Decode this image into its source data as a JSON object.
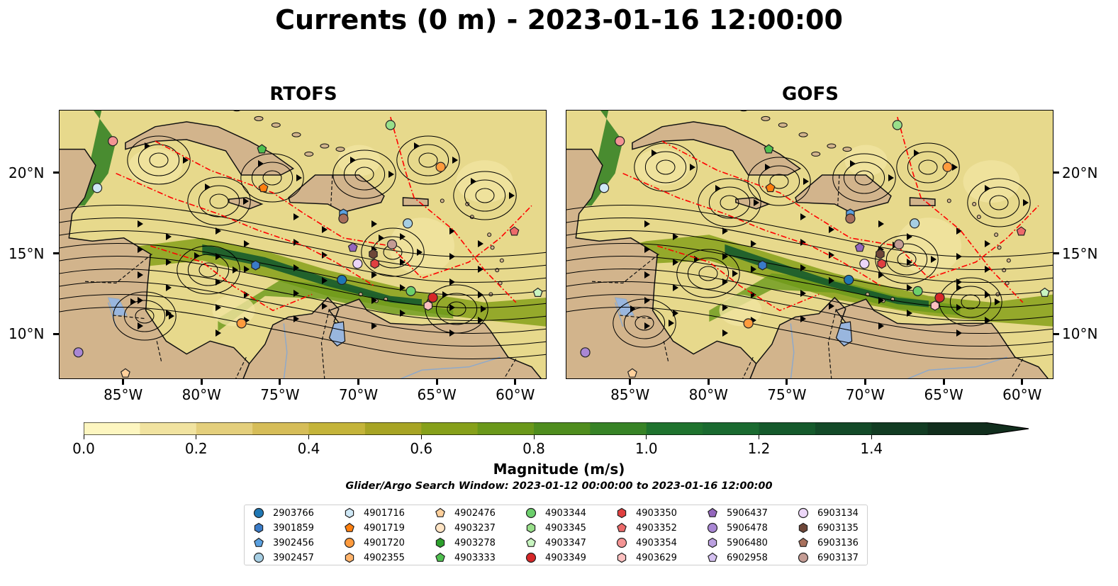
{
  "title": "Currents (0 m) - 2023-01-16 12:00:00",
  "panels": [
    {
      "title": "RTOFS"
    },
    {
      "title": "GOFS"
    }
  ],
  "axes": {
    "x_ticks": [
      "85°W",
      "80°W",
      "75°W",
      "70°W",
      "65°W",
      "60°W"
    ],
    "y_ticks": [
      "20°N",
      "15°N",
      "10°N"
    ]
  },
  "colorbar": {
    "label": "Magnitude (m/s)",
    "ticks": [
      "0.0",
      "0.2",
      "0.4",
      "0.6",
      "0.8",
      "1.0",
      "1.2",
      "1.4"
    ],
    "colors": [
      "#fdf6c0",
      "#f1e3a0",
      "#e4cf7c",
      "#d6bd58",
      "#c4b43a",
      "#a7a424",
      "#86a01a",
      "#6a981a",
      "#4f8d1e",
      "#378326",
      "#1f732e",
      "#1a6a30",
      "#155a2c",
      "#134a28",
      "#123c23",
      "#112e1d"
    ]
  },
  "search_window": "Glider/Argo Search Window: 2023-01-12 00:00:00 to 2023-01-16 12:00:00",
  "colors": {
    "land": "#d2b48c",
    "lake": "#99b6de",
    "eez": "#ff0000"
  },
  "legend": [
    {
      "id": "2903766",
      "color": "#1f77b4",
      "marker": "circle"
    },
    {
      "id": "3901859",
      "color": "#3a7bc8",
      "marker": "hexagon"
    },
    {
      "id": "3902456",
      "color": "#5aa0e0",
      "marker": "pentagon"
    },
    {
      "id": "3902457",
      "color": "#a6cee3",
      "marker": "circle"
    },
    {
      "id": "4901716",
      "color": "#cfe8f6",
      "marker": "hexagon"
    },
    {
      "id": "4901719",
      "color": "#ff7f0e",
      "marker": "pentagon"
    },
    {
      "id": "4901720",
      "color": "#ff9b3d",
      "marker": "circle"
    },
    {
      "id": "4902355",
      "color": "#ffb36b",
      "marker": "hexagon"
    },
    {
      "id": "4902476",
      "color": "#ffd09b",
      "marker": "pentagon"
    },
    {
      "id": "4903237",
      "color": "#ffe4c4",
      "marker": "circle"
    },
    {
      "id": "4903278",
      "color": "#2ca02c",
      "marker": "hexagon"
    },
    {
      "id": "4903333",
      "color": "#4fc04f",
      "marker": "pentagon"
    },
    {
      "id": "4903344",
      "color": "#6ccf6c",
      "marker": "circle"
    },
    {
      "id": "4903345",
      "color": "#98df8a",
      "marker": "hexagon"
    },
    {
      "id": "4903347",
      "color": "#c8f5c0",
      "marker": "pentagon"
    },
    {
      "id": "4903349",
      "color": "#d62728",
      "marker": "circle"
    },
    {
      "id": "4903350",
      "color": "#e04040",
      "marker": "hexagon"
    },
    {
      "id": "4903352",
      "color": "#ec6a6a",
      "marker": "pentagon"
    },
    {
      "id": "4903354",
      "color": "#f49494",
      "marker": "circle"
    },
    {
      "id": "4903629",
      "color": "#fcc0c0",
      "marker": "hexagon"
    },
    {
      "id": "5906437",
      "color": "#9467bd",
      "marker": "pentagon"
    },
    {
      "id": "5906478",
      "color": "#a987d4",
      "marker": "circle"
    },
    {
      "id": "5906480",
      "color": "#bba0e0",
      "marker": "hexagon"
    },
    {
      "id": "6902958",
      "color": "#d4c0f0",
      "marker": "pentagon"
    },
    {
      "id": "6903134",
      "color": "#ecd6f8",
      "marker": "circle"
    },
    {
      "id": "6903135",
      "color": "#6e4638",
      "marker": "hexagon"
    },
    {
      "id": "6903136",
      "color": "#a8705c",
      "marker": "pentagon"
    },
    {
      "id": "6903137",
      "color": "#c49c94",
      "marker": "circle"
    }
  ],
  "floats_rtofs": [
    {
      "lon": -85.7,
      "lat": 22.0,
      "color": "#f49494",
      "marker": "circle"
    },
    {
      "lon": -86.7,
      "lat": 19.1,
      "color": "#cfe8f6",
      "marker": "circle"
    },
    {
      "lon": -76.1,
      "lat": 19.1,
      "color": "#ff7f0e",
      "marker": "pentagon"
    },
    {
      "lon": -77.5,
      "lat": 10.7,
      "color": "#ff9b3d",
      "marker": "circle"
    },
    {
      "lon": -76.6,
      "lat": 14.3,
      "color": "#3a7bc8",
      "marker": "hexagon"
    },
    {
      "lon": -71.0,
      "lat": 17.5,
      "color": "#5aa0e0",
      "marker": "hexagon"
    },
    {
      "lon": -71.0,
      "lat": 17.2,
      "color": "#a8705c",
      "marker": "circle"
    },
    {
      "lon": -71.1,
      "lat": 13.4,
      "color": "#1f77b4",
      "marker": "circle"
    },
    {
      "lon": -70.4,
      "lat": 15.4,
      "color": "#9467bd",
      "marker": "pentagon"
    },
    {
      "lon": -70.1,
      "lat": 14.4,
      "color": "#ecd6f8",
      "marker": "circle"
    },
    {
      "lon": -69.1,
      "lat": 15.0,
      "color": "#6e4638",
      "marker": "hexagon"
    },
    {
      "lon": -69.0,
      "lat": 14.4,
      "color": "#e04040",
      "marker": "hexagon"
    },
    {
      "lon": -67.9,
      "lat": 15.6,
      "color": "#c49c94",
      "marker": "circle"
    },
    {
      "lon": -66.9,
      "lat": 16.9,
      "color": "#a6cee3",
      "marker": "circle"
    },
    {
      "lon": -68.0,
      "lat": 23.0,
      "color": "#98df8a",
      "marker": "circle"
    },
    {
      "lon": -64.8,
      "lat": 20.4,
      "color": "#ff9b3d",
      "marker": "circle"
    },
    {
      "lon": -76.2,
      "lat": 21.5,
      "color": "#4fc04f",
      "marker": "pentagon"
    },
    {
      "lon": -66.7,
      "lat": 12.7,
      "color": "#6ccf6c",
      "marker": "circle"
    },
    {
      "lon": -65.3,
      "lat": 12.3,
      "color": "#d62728",
      "marker": "circle"
    },
    {
      "lon": -65.6,
      "lat": 11.8,
      "color": "#fcc0c0",
      "marker": "hexagon"
    },
    {
      "lon": -60.1,
      "lat": 16.4,
      "color": "#ec6a6a",
      "marker": "pentagon"
    },
    {
      "lon": -58.6,
      "lat": 12.6,
      "color": "#c8f5c0",
      "marker": "pentagon"
    },
    {
      "lon": -87.9,
      "lat": 8.9,
      "color": "#a987d4",
      "marker": "circle"
    },
    {
      "lon": -84.9,
      "lat": 7.6,
      "color": "#ffd09b",
      "marker": "pentagon"
    }
  ],
  "floats_gofs": [
    {
      "lon": -85.7,
      "lat": 22.0,
      "color": "#f49494",
      "marker": "circle"
    },
    {
      "lon": -86.7,
      "lat": 19.1,
      "color": "#cfe8f6",
      "marker": "circle"
    },
    {
      "lon": -76.1,
      "lat": 19.1,
      "color": "#ff7f0e",
      "marker": "pentagon"
    },
    {
      "lon": -77.5,
      "lat": 10.7,
      "color": "#ff9b3d",
      "marker": "circle"
    },
    {
      "lon": -76.6,
      "lat": 14.3,
      "color": "#3a7bc8",
      "marker": "hexagon"
    },
    {
      "lon": -71.0,
      "lat": 17.5,
      "color": "#5aa0e0",
      "marker": "hexagon"
    },
    {
      "lon": -71.0,
      "lat": 17.2,
      "color": "#a8705c",
      "marker": "circle"
    },
    {
      "lon": -71.1,
      "lat": 13.4,
      "color": "#1f77b4",
      "marker": "circle"
    },
    {
      "lon": -70.4,
      "lat": 15.4,
      "color": "#9467bd",
      "marker": "pentagon"
    },
    {
      "lon": -70.1,
      "lat": 14.4,
      "color": "#ecd6f8",
      "marker": "circle"
    },
    {
      "lon": -69.1,
      "lat": 15.0,
      "color": "#6e4638",
      "marker": "hexagon"
    },
    {
      "lon": -69.0,
      "lat": 14.4,
      "color": "#e04040",
      "marker": "hexagon"
    },
    {
      "lon": -67.9,
      "lat": 15.6,
      "color": "#c49c94",
      "marker": "circle"
    },
    {
      "lon": -66.9,
      "lat": 16.9,
      "color": "#a6cee3",
      "marker": "circle"
    },
    {
      "lon": -68.0,
      "lat": 23.0,
      "color": "#98df8a",
      "marker": "circle"
    },
    {
      "lon": -64.8,
      "lat": 20.4,
      "color": "#ff9b3d",
      "marker": "circle"
    },
    {
      "lon": -76.2,
      "lat": 21.5,
      "color": "#4fc04f",
      "marker": "pentagon"
    },
    {
      "lon": -66.7,
      "lat": 12.7,
      "color": "#6ccf6c",
      "marker": "circle"
    },
    {
      "lon": -65.3,
      "lat": 12.3,
      "color": "#d62728",
      "marker": "circle"
    },
    {
      "lon": -65.6,
      "lat": 11.8,
      "color": "#fcc0c0",
      "marker": "hexagon"
    },
    {
      "lon": -60.1,
      "lat": 16.4,
      "color": "#ec6a6a",
      "marker": "pentagon"
    },
    {
      "lon": -58.6,
      "lat": 12.6,
      "color": "#c8f5c0",
      "marker": "pentagon"
    },
    {
      "lon": -87.9,
      "lat": 8.9,
      "color": "#a987d4",
      "marker": "circle"
    },
    {
      "lon": -84.9,
      "lat": 7.6,
      "color": "#ffd09b",
      "marker": "pentagon"
    }
  ]
}
